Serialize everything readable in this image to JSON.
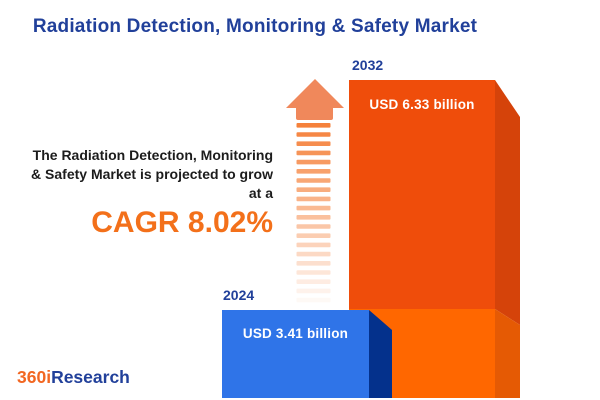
{
  "title": "Radiation Detection, Monitoring & Safety Market",
  "annotation": {
    "line1": "The Radiation Detection, Monitoring",
    "line2": "& Safety Market is projected to grow",
    "line3": "at a",
    "cagr": "CAGR 8.02%"
  },
  "bars": [
    {
      "year": "2024",
      "value_label": "USD 3.41 billion",
      "value": 3.41
    },
    {
      "year": "2032",
      "value_label": "USD 6.33 billion",
      "value": 6.33
    }
  ],
  "logo": {
    "part1": "360i",
    "part2": "Research"
  },
  "colors": {
    "title_blue": "#21409A",
    "text_dark": "#1C1C1C",
    "accent_orange": "#F3701A",
    "bar_2024_front": "#2F74E8",
    "bar_2024_side": "#04318C",
    "bar_2032_top_front": "#EF4D0B",
    "bar_2032_top_side": "#D5430A",
    "bar_2032_bottom_front": "#FF6700",
    "bar_2032_bottom_side": "#E55A04",
    "arrow_head": "#F0885B",
    "arrow_dash": "#F5813B",
    "logo_orange": "#F26722",
    "logo_blue": "#21409A"
  },
  "chart_data": {
    "type": "bar",
    "categories": [
      "2024",
      "2032"
    ],
    "values": [
      3.41,
      6.33
    ],
    "value_unit": "USD billion",
    "data_labels": [
      "USD 3.41 billion",
      "USD 6.33 billion"
    ],
    "series_colors": [
      "#2F74E8",
      "#EF4D0B"
    ],
    "title": "Radiation Detection, Monitoring & Safety Market",
    "annotation": "The Radiation Detection, Monitoring & Safety Market is projected to grow at a CAGR 8.02%",
    "cagr_percent": 8.02,
    "xlabel": "",
    "ylabel": "",
    "axes_visible": false,
    "grid": false,
    "legend": "none",
    "style": "3d-infographic, growth arrow between bars"
  }
}
